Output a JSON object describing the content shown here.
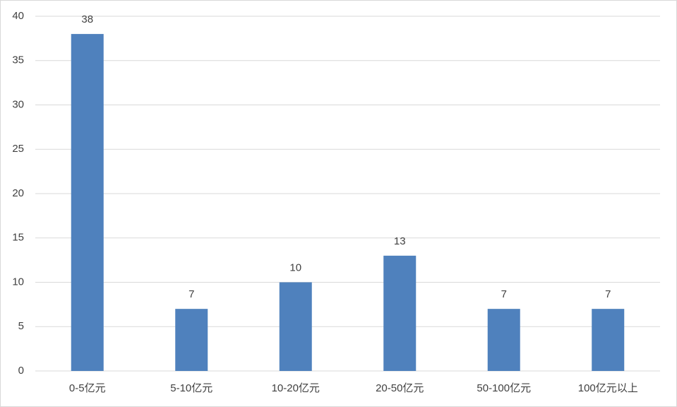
{
  "chart_data": {
    "type": "bar",
    "categories": [
      "0-5亿元",
      "5-10亿元",
      "10-20亿元",
      "20-50亿元",
      "50-100亿元",
      "100亿元以上"
    ],
    "values": [
      38,
      7,
      10,
      13,
      7,
      7
    ],
    "color": "#4f81bd",
    "ylim": [
      0,
      40
    ],
    "yticks": [
      0,
      5,
      10,
      15,
      20,
      25,
      30,
      35,
      40
    ],
    "grid": true
  }
}
